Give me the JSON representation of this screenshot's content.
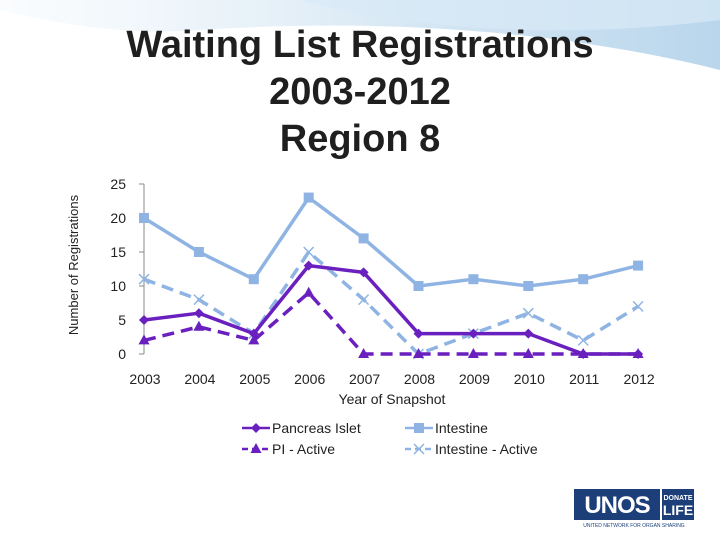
{
  "title_lines": [
    "Waiting List Registrations",
    "2003-2012",
    "Region 8"
  ],
  "chart_data": {
    "type": "line",
    "title": "Waiting List Registrations 2003-2012 Region 8",
    "xlabel": "Year of Snapshot",
    "ylabel": "Number of Registrations",
    "x": [
      "2003",
      "2004",
      "2005",
      "2006",
      "2007",
      "2008",
      "2009",
      "2010",
      "2011",
      "2012"
    ],
    "ylim": [
      0,
      25
    ],
    "yticks": [
      0,
      5,
      10,
      15,
      20,
      25
    ],
    "grid": false,
    "legend_placement": "bottom",
    "series": [
      {
        "name": "Pancreas Islet",
        "color": "#6a1fbf",
        "dashed": false,
        "marker": "diamond",
        "values": [
          5,
          6,
          3,
          13,
          12,
          3,
          3,
          3,
          0,
          0
        ]
      },
      {
        "name": "Intestine",
        "color": "#8fb4e3",
        "dashed": false,
        "marker": "square",
        "values": [
          20,
          15,
          11,
          23,
          17,
          10,
          11,
          10,
          11,
          13
        ]
      },
      {
        "name": "PI - Active",
        "color": "#6a1fbf",
        "dashed": true,
        "marker": "triangle",
        "values": [
          2,
          4,
          2,
          9,
          0,
          0,
          0,
          0,
          0,
          0
        ]
      },
      {
        "name": "Intestine - Active",
        "color": "#8fb4e3",
        "dashed": true,
        "marker": "x",
        "values": [
          11,
          8,
          3,
          15,
          8,
          0,
          3,
          6,
          2,
          7
        ]
      }
    ]
  },
  "logo": {
    "text": "UNOS",
    "badge_line1": "DONATE",
    "badge_line2": "LIFE",
    "tagline": "UNITED NETWORK FOR ORGAN SHARING",
    "brand_color": "#1c3f7a"
  },
  "colors": {
    "swoosh": "#cfe3f2"
  }
}
